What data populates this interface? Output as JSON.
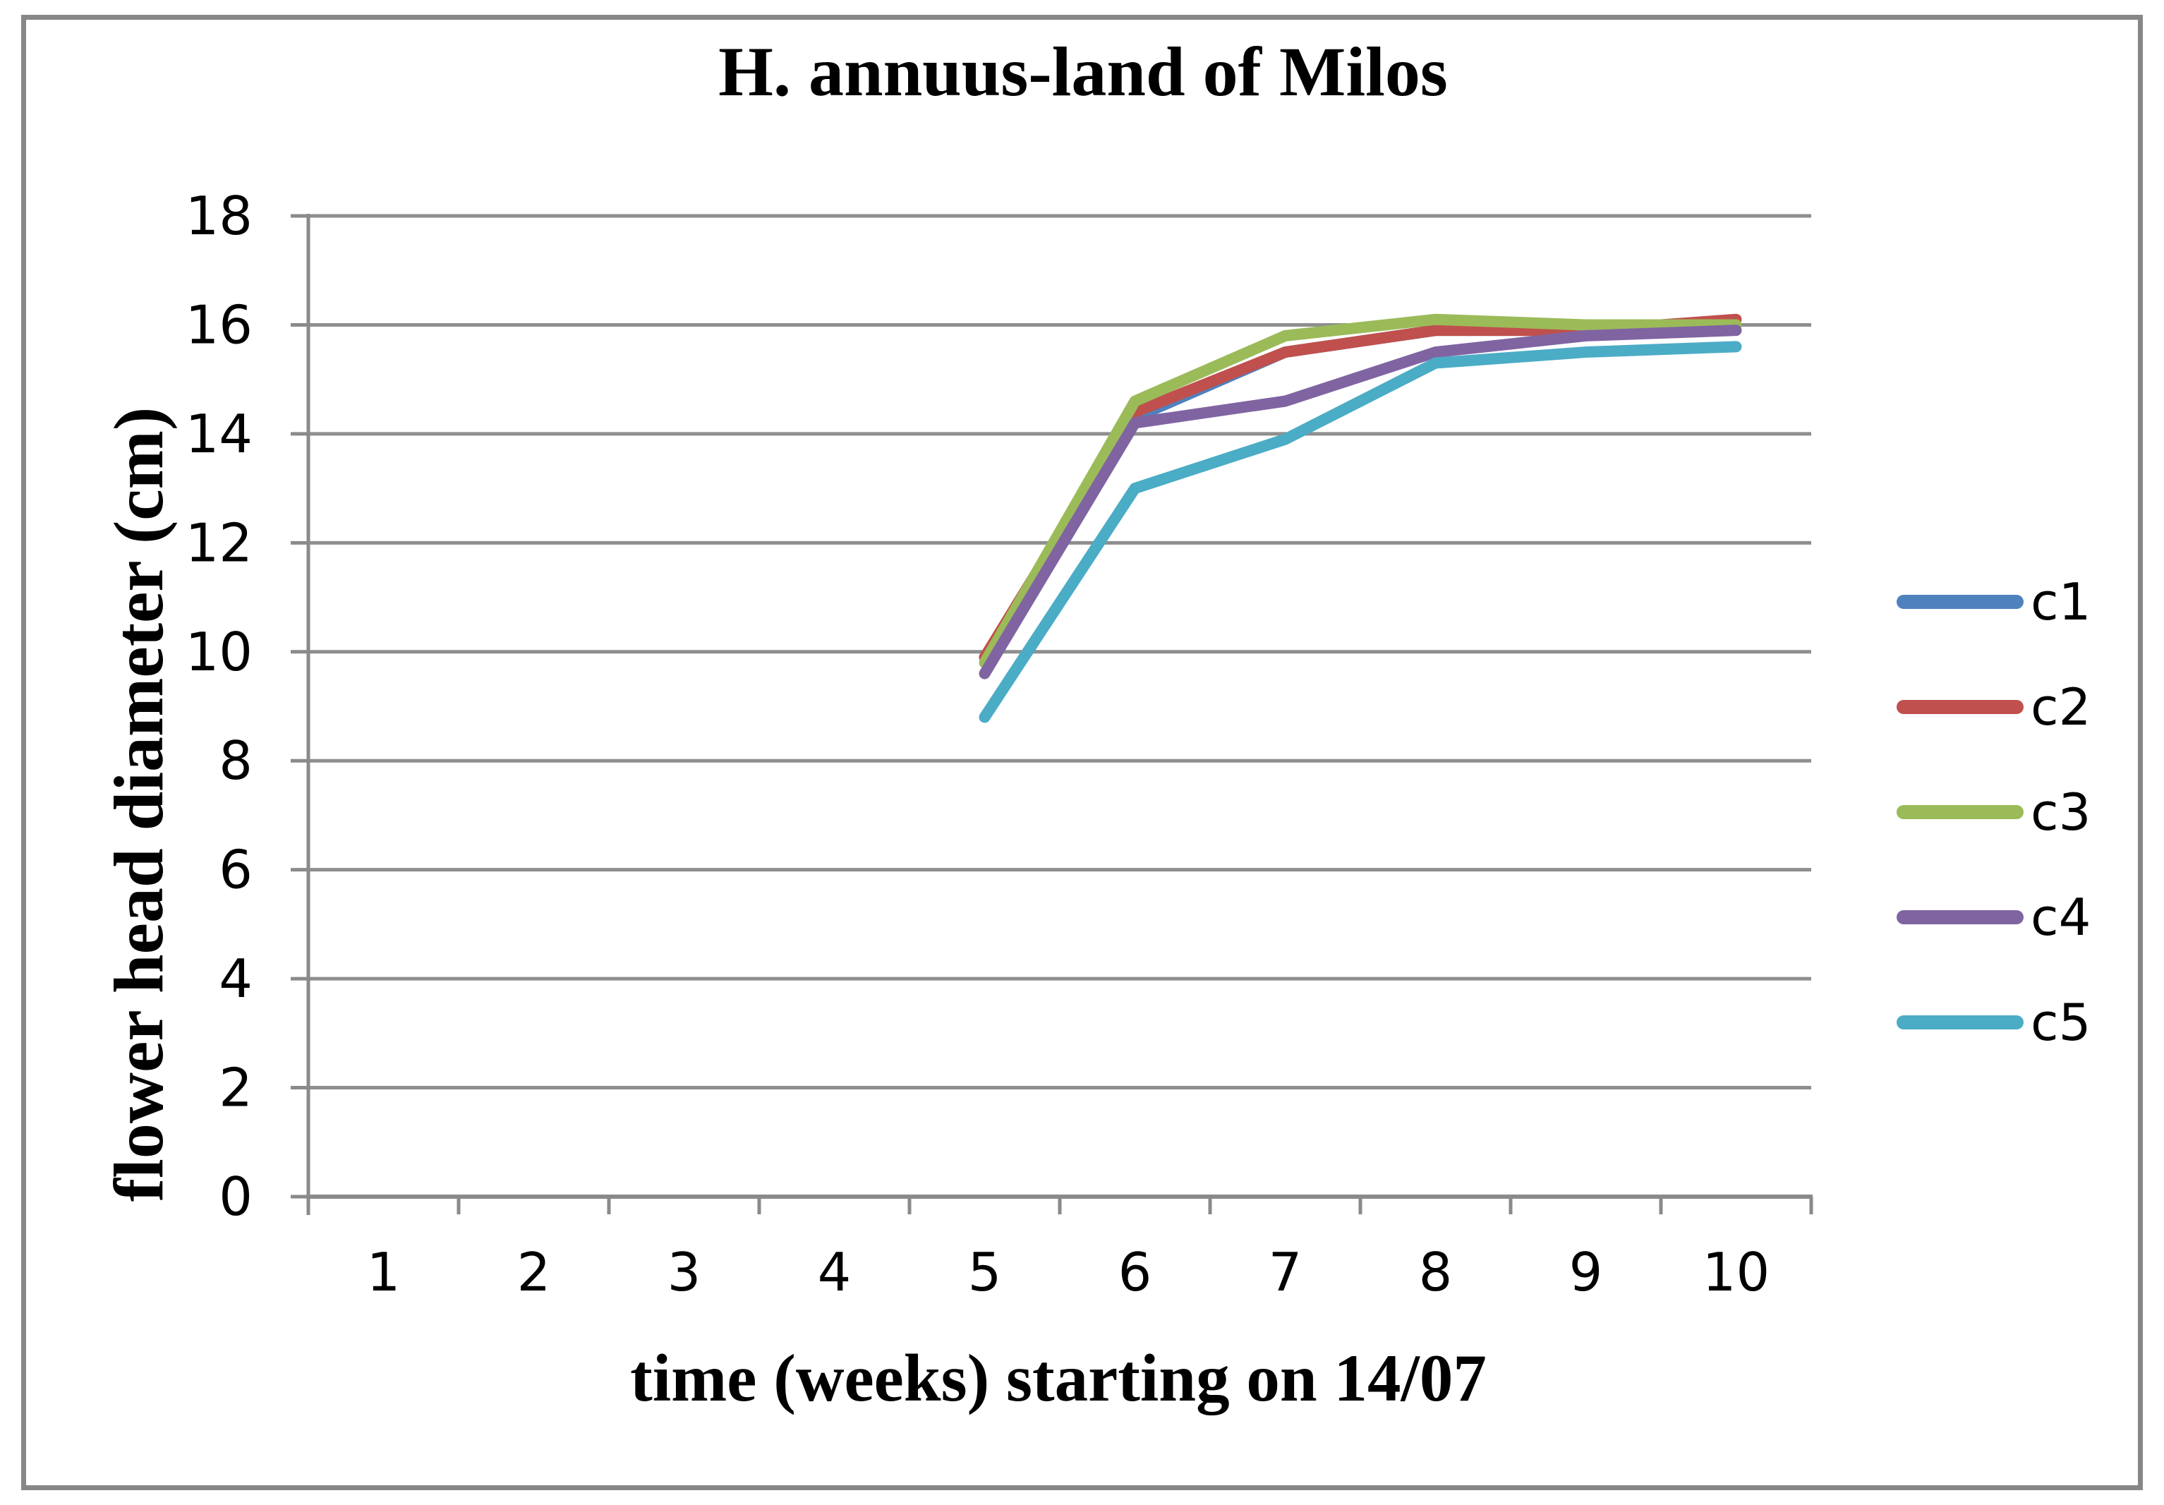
{
  "chart_data": {
    "type": "line",
    "title": "H. annuus-land of Milos",
    "xlabel": "time (weeks) starting on 14/07",
    "ylabel": "flower head diameter (cm)",
    "x_tick_labels": [
      "1",
      "2",
      "3",
      "4",
      "5",
      "6",
      "7",
      "8",
      "9",
      "10"
    ],
    "y_tick_labels": [
      "0",
      "2",
      "4",
      "6",
      "8",
      "10",
      "12",
      "14",
      "16",
      "18"
    ],
    "y_tick_values": [
      0,
      2,
      4,
      6,
      8,
      10,
      12,
      14,
      16,
      18
    ],
    "ylim": [
      0,
      18
    ],
    "x_categories": [
      1,
      2,
      3,
      4,
      5,
      6,
      7,
      8,
      9,
      10
    ],
    "grid": "horizontal",
    "legend_position": "right",
    "weeks_with_data": [
      5,
      6,
      7,
      8,
      9,
      10
    ],
    "series": [
      {
        "name": "c1",
        "color": "#4F81BD",
        "values": [
          9.9,
          14.3,
          15.5,
          15.9,
          15.9,
          16.0
        ]
      },
      {
        "name": "c2",
        "color": "#C0504D",
        "values": [
          9.9,
          14.4,
          15.5,
          15.9,
          15.9,
          16.1
        ]
      },
      {
        "name": "c3",
        "color": "#9BBB59",
        "values": [
          9.8,
          14.6,
          15.8,
          16.1,
          16.0,
          16.0
        ]
      },
      {
        "name": "c4",
        "color": "#8064A2",
        "values": [
          9.6,
          14.2,
          14.6,
          15.5,
          15.8,
          15.9
        ]
      },
      {
        "name": "c5",
        "color": "#4BACC6",
        "values": [
          8.8,
          13.0,
          13.9,
          15.3,
          15.5,
          15.6
        ]
      }
    ]
  },
  "styles": {
    "grid_color": "#8e8e8e",
    "axis_color": "#8a8a8a",
    "frame_color": "#878787",
    "text_color": "#000000",
    "background": "#ffffff"
  }
}
